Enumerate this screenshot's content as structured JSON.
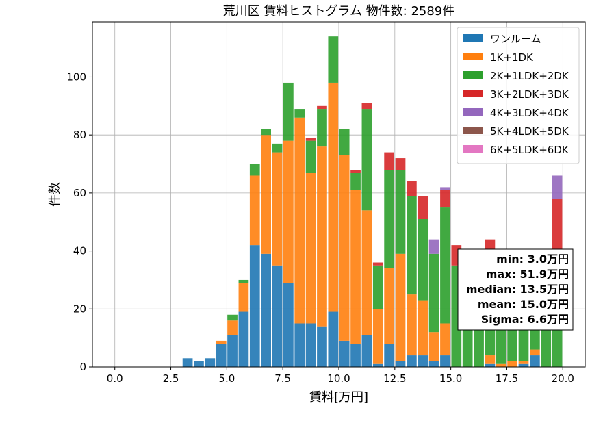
{
  "chart_data": {
    "type": "bar",
    "stacked": true,
    "title": "荒川区 賃料ヒストグラム 物件数: 2589件",
    "xlabel": "賃料[万円]",
    "ylabel": "件数",
    "xlim": [
      -1.0,
      21.0
    ],
    "ylim": [
      0,
      119
    ],
    "x_ticks": [
      "0.0",
      "2.5",
      "5.0",
      "7.5",
      "10.0",
      "12.5",
      "15.0",
      "17.5",
      "20.0"
    ],
    "y_ticks": [
      "0",
      "20",
      "40",
      "60",
      "80",
      "100"
    ],
    "grid": true,
    "legend_position": "top-right",
    "bin_width": 0.5,
    "x": [
      3.0,
      3.5,
      4.0,
      4.5,
      5.0,
      5.5,
      6.0,
      6.5,
      7.0,
      7.5,
      8.0,
      8.5,
      9.0,
      9.5,
      10.0,
      10.5,
      11.0,
      11.5,
      12.0,
      12.5,
      13.0,
      13.5,
      14.0,
      14.5,
      15.0,
      15.5,
      16.0,
      16.5,
      17.0,
      17.5,
      18.0,
      18.5,
      19.0,
      19.5
    ],
    "series": [
      {
        "name": "ワンルーム",
        "color": "#1f77b4",
        "values": [
          3,
          2,
          3,
          8,
          11,
          19,
          42,
          39,
          35,
          29,
          15,
          15,
          14,
          19,
          9,
          8,
          11,
          1,
          8,
          2,
          4,
          4,
          2,
          4,
          0,
          0,
          0,
          1,
          0,
          0,
          1,
          4,
          0,
          0
        ]
      },
      {
        "name": "1K+1DK",
        "color": "#ff7f0e",
        "values": [
          0,
          0,
          0,
          1,
          5,
          10,
          24,
          41,
          39,
          49,
          71,
          52,
          62,
          79,
          64,
          53,
          43,
          19,
          26,
          37,
          21,
          19,
          10,
          11,
          0,
          0,
          0,
          3,
          1,
          2,
          1,
          2,
          0,
          0
        ]
      },
      {
        "name": "2K+1LDK+2DK",
        "color": "#2ca02c",
        "values": [
          0,
          0,
          0,
          0,
          2,
          1,
          4,
          2,
          3,
          20,
          3,
          11,
          13,
          16,
          9,
          6,
          35,
          15,
          34,
          29,
          34,
          28,
          27,
          40,
          35,
          30,
          32,
          32,
          33,
          30,
          31,
          14,
          32,
          30
        ]
      },
      {
        "name": "3K+2LDK+3DK",
        "color": "#d62728",
        "values": [
          0,
          0,
          0,
          0,
          0,
          0,
          0,
          0,
          0,
          0,
          0,
          1,
          1,
          0,
          0,
          1,
          2,
          1,
          6,
          4,
          5,
          8,
          0,
          6,
          7,
          0,
          0,
          8,
          0,
          0,
          0,
          8,
          0,
          28
        ]
      },
      {
        "name": "4K+3LDK+4DK",
        "color": "#9467bd",
        "values": [
          0,
          0,
          0,
          0,
          0,
          0,
          0,
          0,
          0,
          0,
          0,
          0,
          0,
          0,
          0,
          0,
          0,
          0,
          0,
          0,
          0,
          0,
          5,
          1,
          0,
          0,
          2,
          0,
          0,
          0,
          0,
          0,
          4,
          8
        ]
      },
      {
        "name": "5K+4LDK+5DK",
        "color": "#8c564b",
        "values": [
          0,
          0,
          0,
          0,
          0,
          0,
          0,
          0,
          0,
          0,
          0,
          0,
          0,
          0,
          0,
          0,
          0,
          0,
          0,
          0,
          0,
          0,
          0,
          0,
          0,
          0,
          0,
          0,
          0,
          0,
          0,
          0,
          0,
          0
        ]
      },
      {
        "name": "6K+5LDK+6DK",
        "color": "#e377c2",
        "values": [
          0,
          0,
          0,
          0,
          0,
          0,
          0,
          0,
          0,
          0,
          0,
          0,
          0,
          0,
          0,
          0,
          0,
          0,
          0,
          0,
          0,
          0,
          0,
          0,
          0,
          0,
          0,
          0,
          0,
          0,
          0,
          0,
          0,
          0
        ]
      }
    ],
    "stats": [
      "min: 3.0万円",
      "max: 51.9万円",
      "median: 13.5万円",
      "mean: 15.0万円",
      "Sigma: 6.6万円"
    ]
  }
}
